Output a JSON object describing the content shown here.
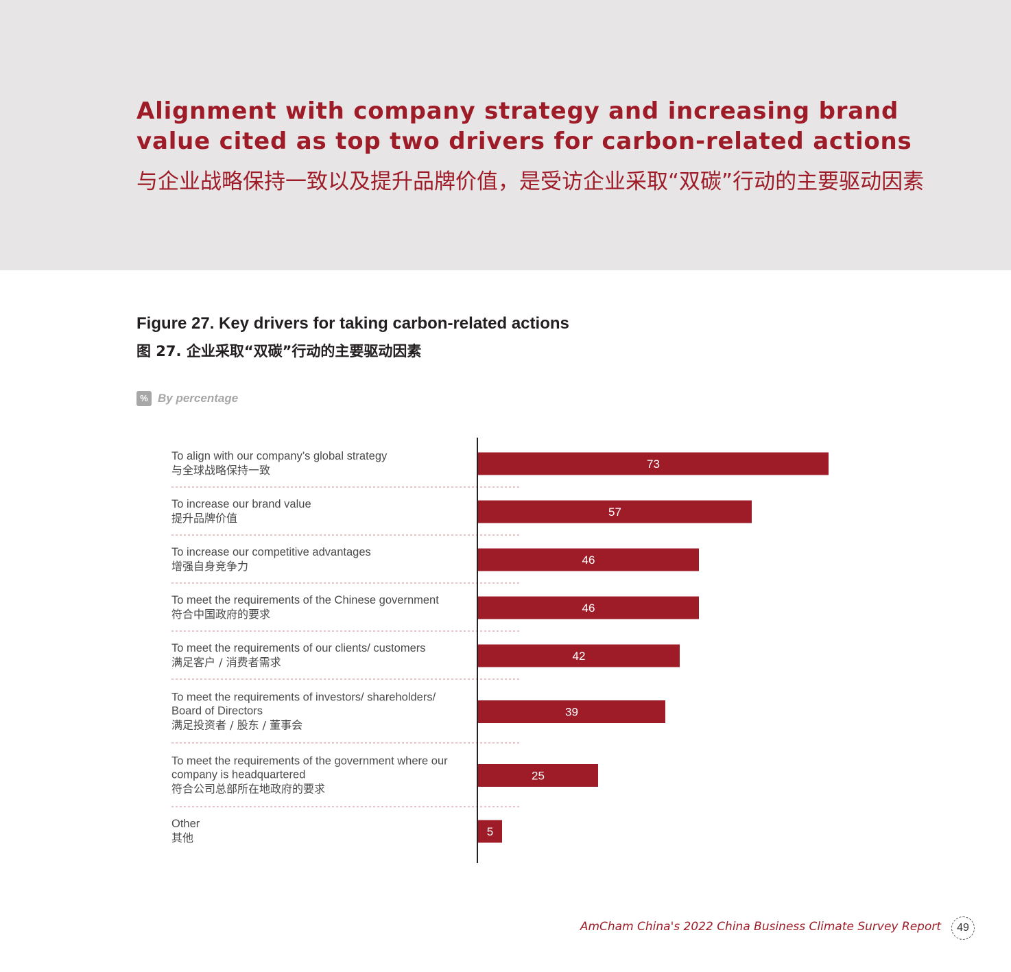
{
  "header": {
    "title_en": "Alignment with company strategy and increasing brand value cited as top two drivers for carbon-related actions",
    "title_zh": "与企业战略保持一致以及提升品牌价值，是受访企业采取“双碳”行动的主要驱动因素"
  },
  "figure": {
    "title_en": "Figure 27. Key drivers for taking carbon-related actions",
    "title_zh": "图 27. 企业采取“双碳”行动的主要驱动因素",
    "unit_badge": "%",
    "unit_text": "By percentage"
  },
  "chart_data": {
    "type": "bar",
    "orientation": "horizontal",
    "categories": [
      {
        "en": [
          "To align with our company’s global strategy"
        ],
        "zh": "与全球战略保持一致"
      },
      {
        "en": [
          "To increase our brand value"
        ],
        "zh": "提升品牌价值"
      },
      {
        "en": [
          "To increase our competitive advantages"
        ],
        "zh": "增强自身竞争力"
      },
      {
        "en": [
          "To meet the requirements of the Chinese government"
        ],
        "zh": "符合中国政府的要求"
      },
      {
        "en": [
          "To meet the requirements of our clients/ customers"
        ],
        "zh": "满足客户 / 消费者需求"
      },
      {
        "en": [
          "To meet the requirements of investors/ shareholders/",
          "Board of Directors"
        ],
        "zh": "满足投资者 / 股东 / 董事会"
      },
      {
        "en": [
          "To meet the requirements of the government where our",
          "company is headquartered"
        ],
        "zh": "符合公司总部所在地政府的要求"
      },
      {
        "en": [
          "Other"
        ],
        "zh": "其他"
      }
    ],
    "values": [
      73,
      57,
      46,
      46,
      42,
      39,
      25,
      5
    ],
    "bar_color": "#9e1c28",
    "data_labels": true,
    "grid": false
  },
  "footer": {
    "report": "AmCham China's 2022 China Business Climate Survey Report",
    "page": "49"
  }
}
